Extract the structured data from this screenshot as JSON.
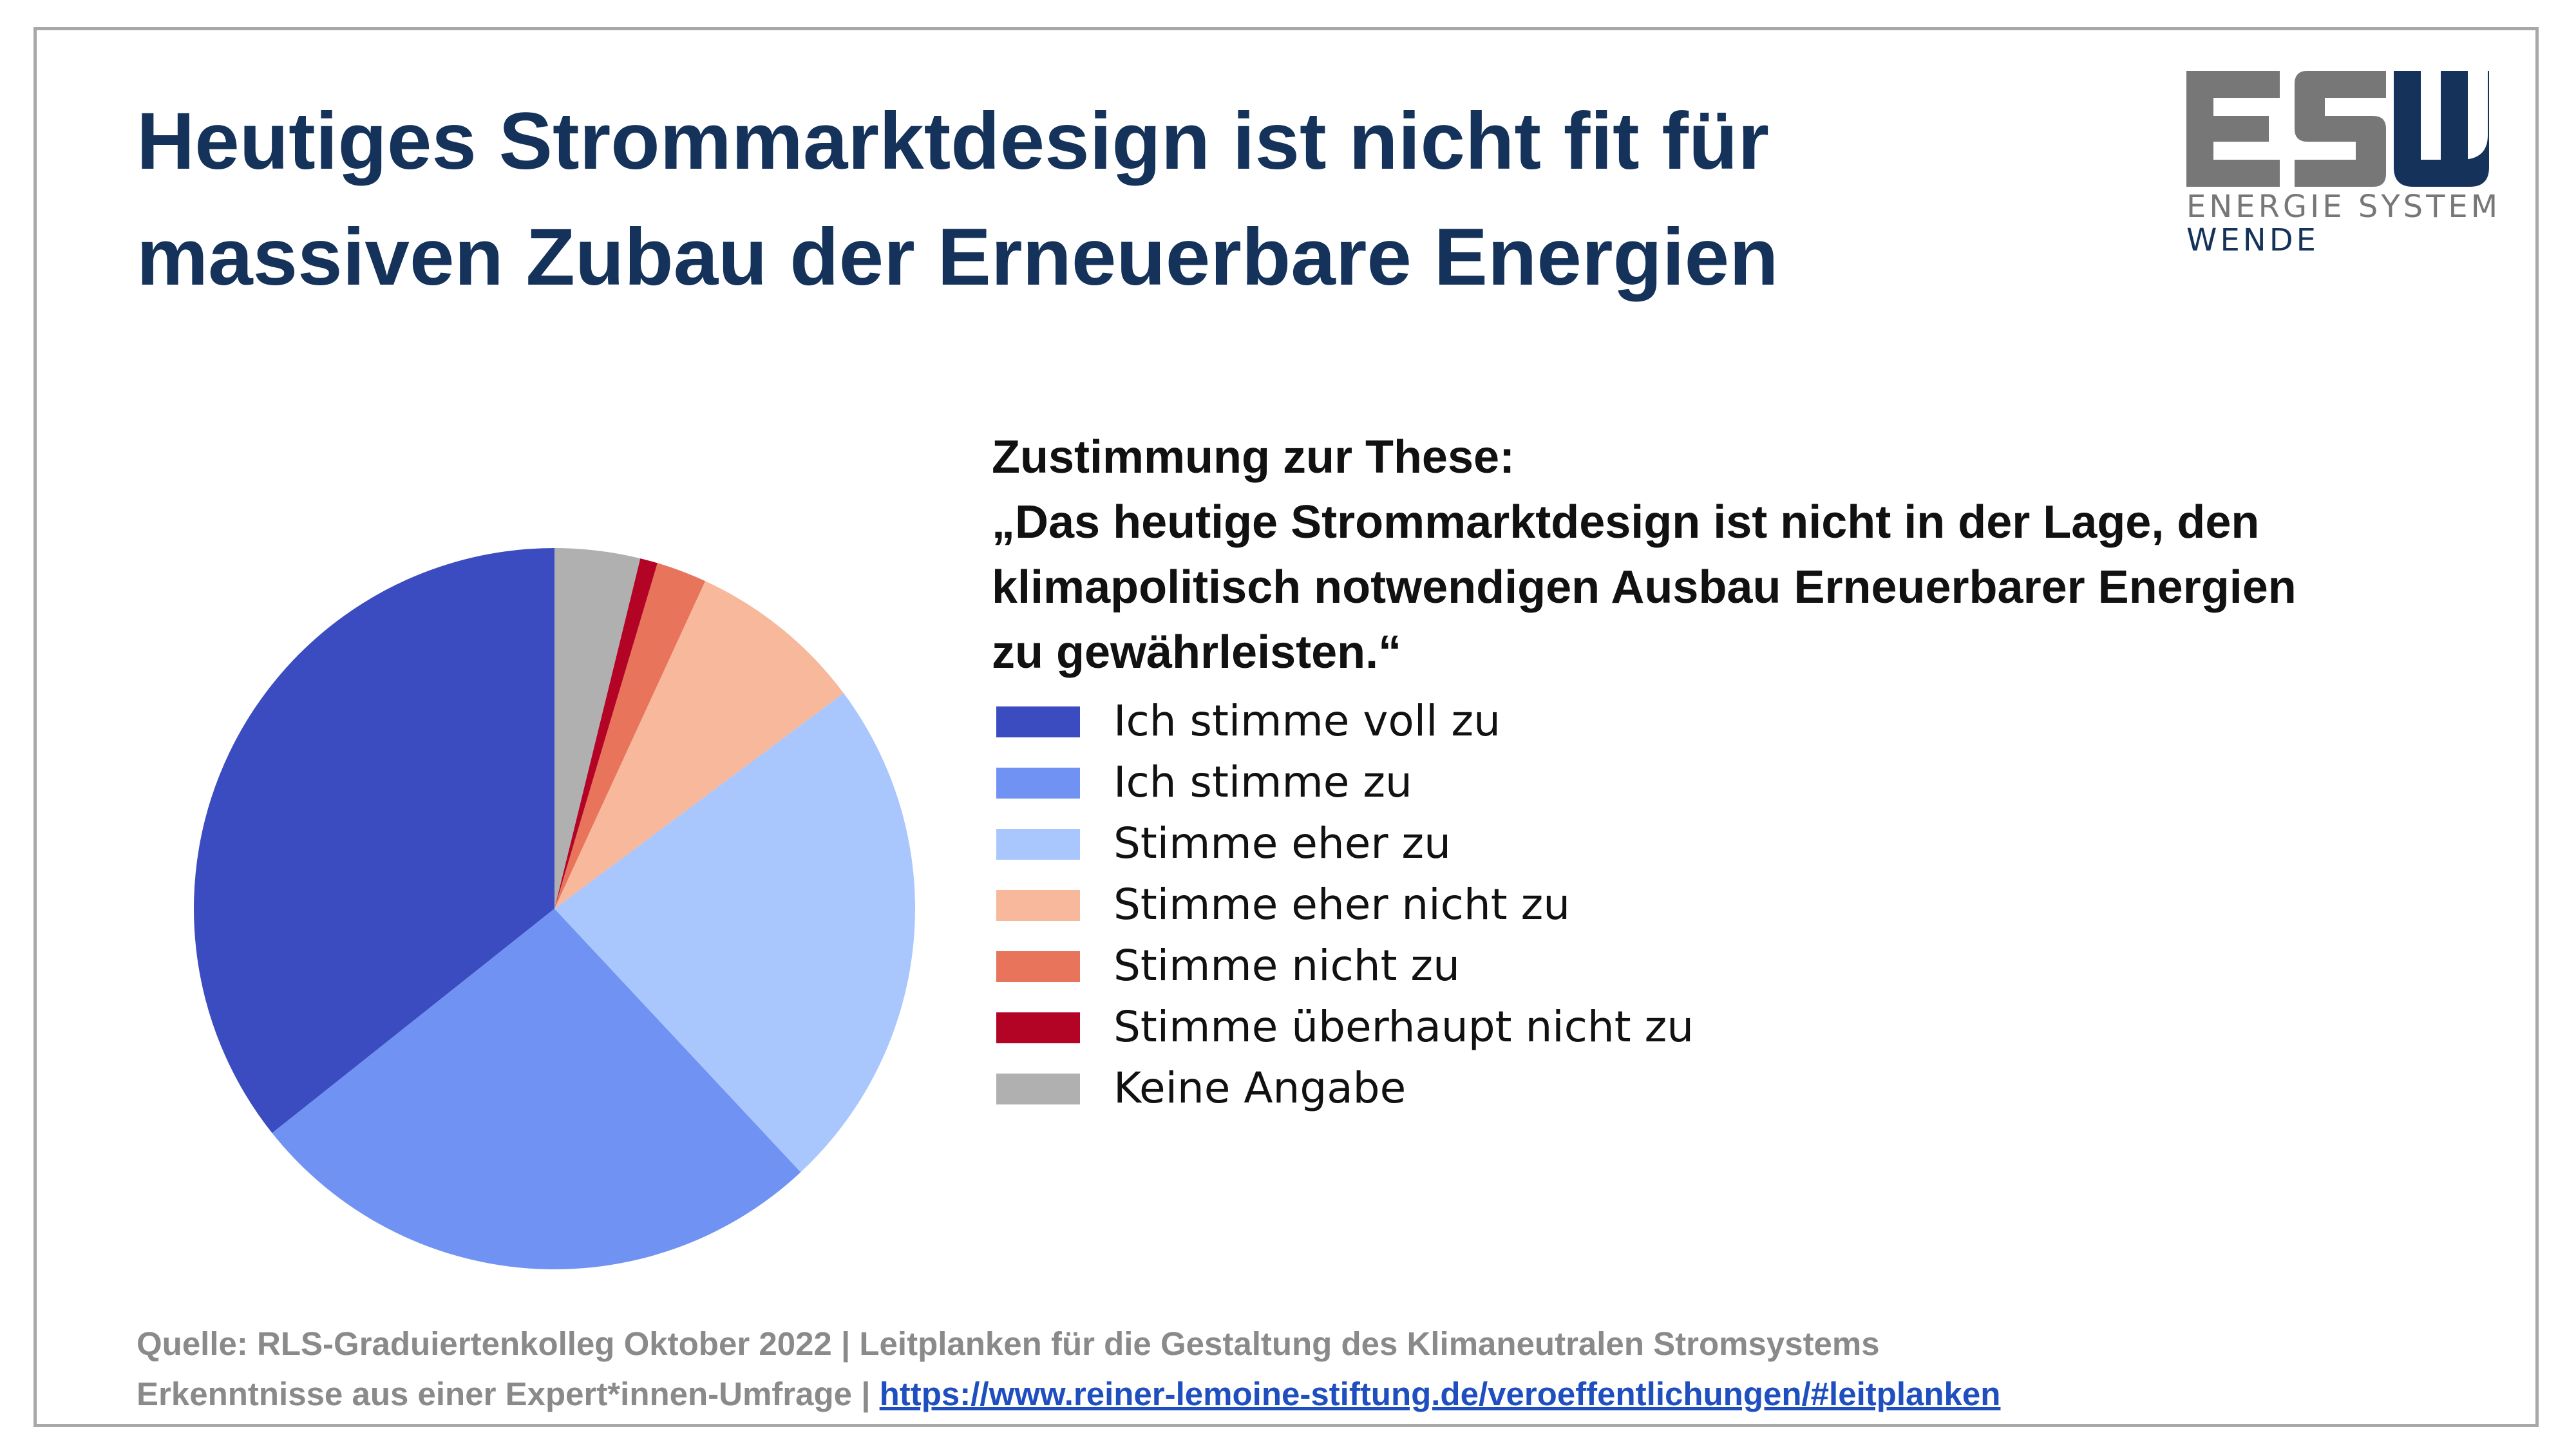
{
  "slide": {
    "title_lines": [
      "Heutiges Strommarktdesign ist nicht fit für",
      "massiven Zubau der Erneuerbare Energien"
    ]
  },
  "logo": {
    "letters": "ESW",
    "line1": "ENERGIE SYSTEM",
    "line2": "WENDE",
    "colors": {
      "es": "#777777",
      "w": "#14325a"
    }
  },
  "chart_data": {
    "type": "pie",
    "title_lines": [
      "Zustimmung zur These:",
      "„Das heutige Strommarktdesign ist nicht in der Lage, den",
      "klimapolitisch notwendigen Ausbau Erneuerbarer Energien",
      "zu gewährleisten.“"
    ],
    "slices": [
      {
        "label": "Ich stimme voll zu",
        "value": 36.4,
        "color": "#3b4cc0"
      },
      {
        "label": "Ich stimme zu",
        "value": 26.8,
        "color": "#7092f2"
      },
      {
        "label": "Stimme eher zu",
        "value": 23.7,
        "color": "#aac7fd"
      },
      {
        "label": "Stimme eher nicht zu",
        "value": 8.1,
        "color": "#f7b89c"
      },
      {
        "label": "Stimme nicht zu",
        "value": 2.3,
        "color": "#e7745b"
      },
      {
        "label": "Stimme überhaupt nicht zu",
        "value": 0.8,
        "color": "#b40426"
      },
      {
        "label": "Keine Angabe",
        "value": 3.9,
        "color": "#b0b0b0"
      }
    ],
    "start": "12 o'clock",
    "direction": "counterclockwise",
    "legend_position": "right"
  },
  "source": {
    "line1": "Quelle: RLS-Graduiertenkolleg Oktober 2022 | Leitplanken für die Gestaltung des Klimaneutralen Stromsystems",
    "line2_prefix": "Erkenntnisse aus einer Expert*innen-Umfrage | ",
    "link": "https://www.reiner-lemoine-stiftung.de/veroeffentlichungen/#leitplanken",
    "link_color": "#1f4fbf"
  }
}
